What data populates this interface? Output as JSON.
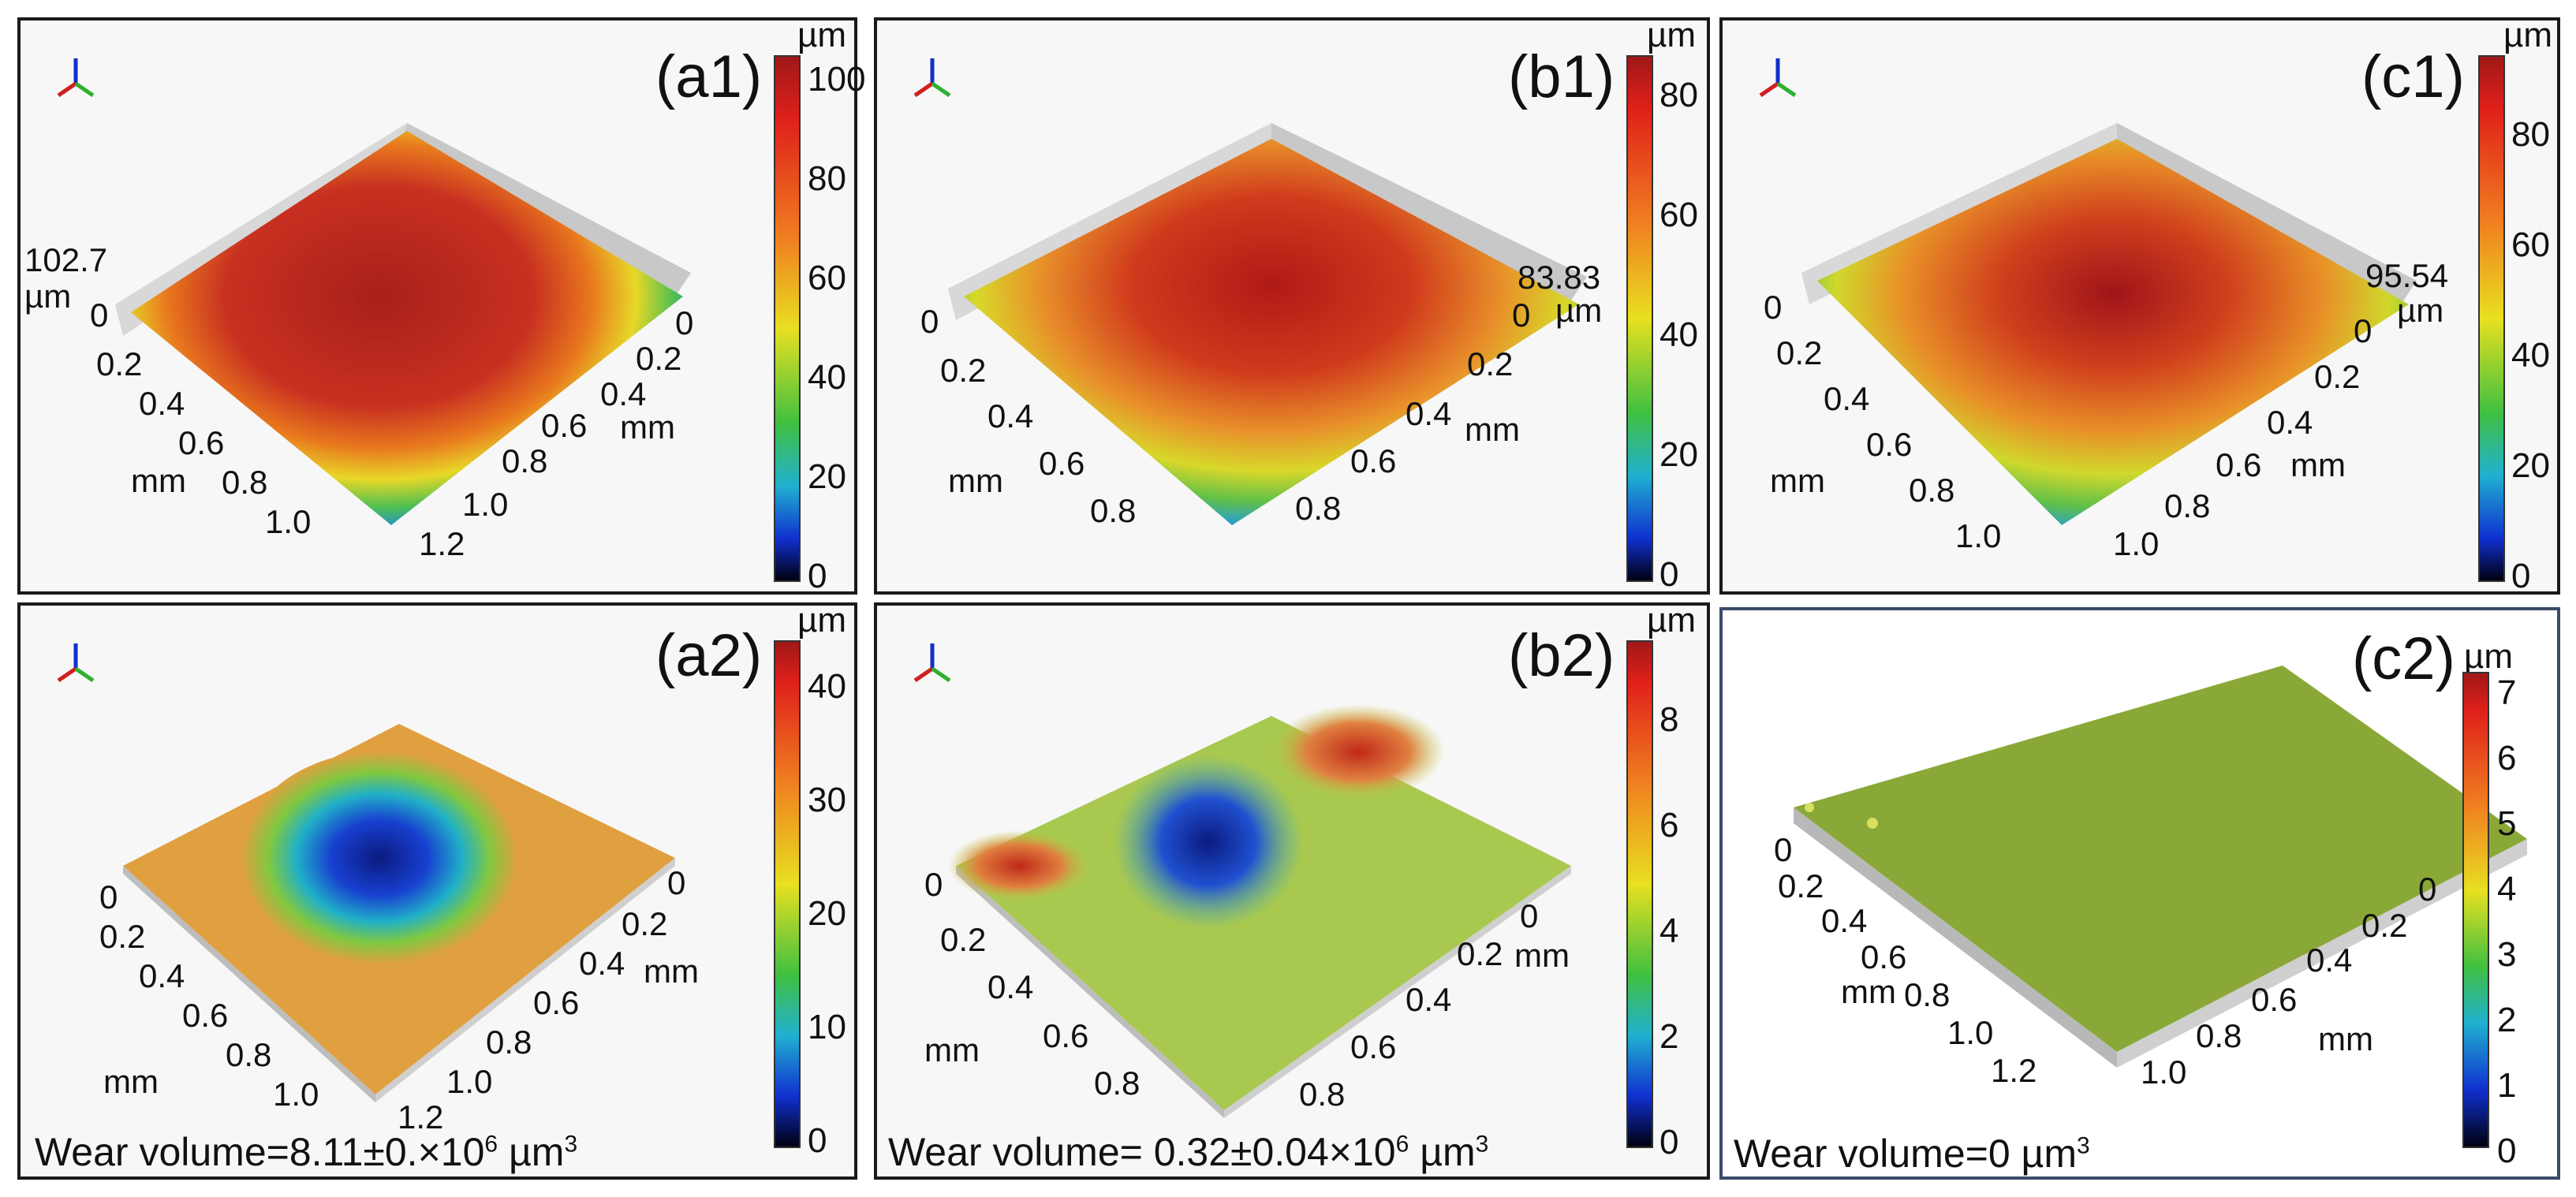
{
  "panels": {
    "a1": {
      "label": "(a1)",
      "unit": "µm",
      "ticks": [
        "100",
        "80",
        "60",
        "40",
        "20",
        "0"
      ],
      "height_label": "102.7",
      "height_unit": "µm",
      "axis_left": [
        "0",
        "0.2",
        "0.4",
        "0.6",
        "0.8",
        "1.0"
      ],
      "axis_left_unit": "mm",
      "axis_right": [
        "0",
        "0.2",
        "0.4",
        "0.6",
        "0.8",
        "1.0",
        "1.2"
      ],
      "axis_right_unit": "mm"
    },
    "b1": {
      "label": "(b1)",
      "unit": "µm",
      "ticks": [
        "80",
        "60",
        "40",
        "20",
        "0"
      ],
      "height_label": "83.83",
      "height_unit": "µm",
      "axis_left": [
        "0",
        "0.2",
        "0.4",
        "0.6",
        "0.8"
      ],
      "axis_left_unit": "mm",
      "axis_right": [
        "0",
        "0.2",
        "0.4",
        "0.6",
        "0.8"
      ],
      "axis_right_unit": "mm"
    },
    "c1": {
      "label": "(c1)",
      "unit": "µm",
      "ticks": [
        "80",
        "60",
        "40",
        "20",
        "0"
      ],
      "height_label": "95.54",
      "height_unit": "µm",
      "axis_left": [
        "0",
        "0.2",
        "0.4",
        "0.6",
        "0.8",
        "1.0"
      ],
      "axis_left_unit": "mm",
      "axis_right": [
        "0",
        "0.2",
        "0.4",
        "0.6",
        "0.8",
        "1.0"
      ],
      "axis_right_unit": "mm"
    },
    "a2": {
      "label": "(a2)",
      "unit": "µm",
      "ticks": [
        "40",
        "30",
        "20",
        "10",
        "0"
      ],
      "axis_left": [
        "0",
        "0.2",
        "0.4",
        "0.6",
        "0.8",
        "1.0"
      ],
      "axis_left_unit": "mm",
      "axis_right": [
        "0",
        "0.2",
        "0.4",
        "0.6",
        "0.8",
        "1.0",
        "1.2"
      ],
      "axis_right_unit": "mm",
      "wear_prefix": "Wear volume=8.11±0.×10",
      "wear_exp": "6",
      "wear_suffix": " µm",
      "wear_exp2": "3"
    },
    "b2": {
      "label": "(b2)",
      "unit": "µm",
      "ticks": [
        "8",
        "6",
        "4",
        "2",
        "0"
      ],
      "axis_left": [
        "0",
        "0.2",
        "0.4",
        "0.6",
        "0.8"
      ],
      "axis_left_unit": "mm",
      "axis_right": [
        "0",
        "0.2",
        "0.4",
        "0.6",
        "0.8"
      ],
      "axis_right_unit": "mm",
      "wear_prefix": "Wear volume= 0.32±0.04×10",
      "wear_exp": "6",
      "wear_suffix": " µm",
      "wear_exp2": "3"
    },
    "c2": {
      "label": "(c2)",
      "unit": "µm",
      "ticks": [
        "7",
        "6",
        "5",
        "4",
        "3",
        "2",
        "1",
        "0"
      ],
      "axis_left": [
        "0",
        "0.2",
        "0.4",
        "0.6",
        "0.8",
        "1.0",
        "1.2"
      ],
      "axis_left_unit": "mm",
      "axis_right": [
        "0",
        "0.2",
        "0.4",
        "0.6",
        "0.8",
        "1.0"
      ],
      "axis_right_unit": "mm",
      "wear_prefix": "Wear volume=0 µm",
      "wear_exp": "3",
      "wear_suffix": "",
      "wear_exp2": ""
    }
  },
  "colors": {
    "red": "#b01818",
    "orange": "#e8601c",
    "yellow": "#e8e020",
    "green": "#4cc04c",
    "cyan": "#20b8c8",
    "blue": "#1030c8",
    "black": "#0a0a1a"
  },
  "icons": {
    "axes": "xyz-axes-icon"
  }
}
